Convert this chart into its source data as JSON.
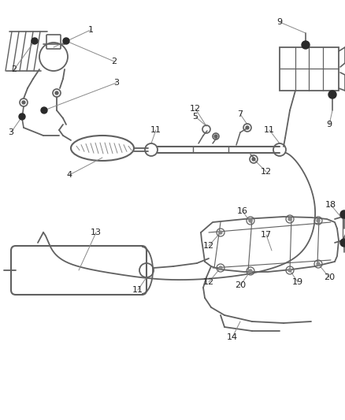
{
  "bg_color": "#ffffff",
  "lc": "#606060",
  "dc": "#222222",
  "figsize": [
    4.39,
    5.33
  ],
  "dpi": 100,
  "xlim": [
    0,
    439
  ],
  "ylim": [
    533,
    0
  ]
}
